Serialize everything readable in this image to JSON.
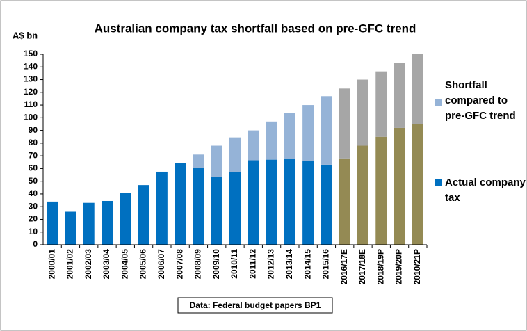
{
  "chart_data": {
    "type": "stacked-bar",
    "title": "Australian company tax shortfall based on pre-GFC trend",
    "y_label": "A$ bn",
    "source": "Data: Federal budget papers BP1",
    "categories": [
      "2000/01",
      "2001/02",
      "2002/03",
      "2003/04",
      "2004/05",
      "2005/06",
      "2006/07",
      "2007/08",
      "2008/09",
      "2009/10",
      "2010/11",
      "2011/12",
      "2012/13",
      "2013/14",
      "2014/15",
      "2015/16",
      "2016/17E",
      "2017/18E",
      "2018/19P",
      "2019/20P",
      "2010/21P"
    ],
    "series": [
      {
        "name": "Actual company tax",
        "color": "#0070c0",
        "point_colors": [
          "#0070c0",
          "#0070c0",
          "#0070c0",
          "#0070c0",
          "#0070c0",
          "#0070c0",
          "#0070c0",
          "#0070c0",
          "#0070c0",
          "#0070c0",
          "#0070c0",
          "#0070c0",
          "#0070c0",
          "#0070c0",
          "#0070c0",
          "#0070c0",
          "#948a54",
          "#948a54",
          "#948a54",
          "#948a54",
          "#948a54"
        ],
        "values": [
          34,
          26,
          33,
          34.5,
          41,
          47,
          57.5,
          64.5,
          60.5,
          53.5,
          57,
          66.5,
          67,
          67.5,
          66,
          63,
          68,
          78,
          85,
          92,
          95
        ]
      },
      {
        "name": "Shortfall compared to pre-GFC trend",
        "color": "#95b3d7",
        "point_colors": [
          "#95b3d7",
          "#95b3d7",
          "#95b3d7",
          "#95b3d7",
          "#95b3d7",
          "#95b3d7",
          "#95b3d7",
          "#95b3d7",
          "#95b3d7",
          "#95b3d7",
          "#95b3d7",
          "#95b3d7",
          "#95b3d7",
          "#95b3d7",
          "#95b3d7",
          "#95b3d7",
          "#a6a6a6",
          "#a6a6a6",
          "#a6a6a6",
          "#a6a6a6",
          "#a6a6a6"
        ],
        "values": [
          null,
          null,
          null,
          null,
          null,
          null,
          null,
          null,
          10.5,
          24.5,
          27.5,
          23.5,
          30,
          36,
          44,
          54,
          55,
          52,
          51.5,
          51,
          55
        ]
      }
    ],
    "ylim": [
      0,
      150
    ],
    "yticks": [
      0,
      10,
      20,
      30,
      40,
      50,
      60,
      70,
      80,
      90,
      100,
      110,
      120,
      130,
      140,
      150
    ],
    "grid": false,
    "legend": "right"
  }
}
